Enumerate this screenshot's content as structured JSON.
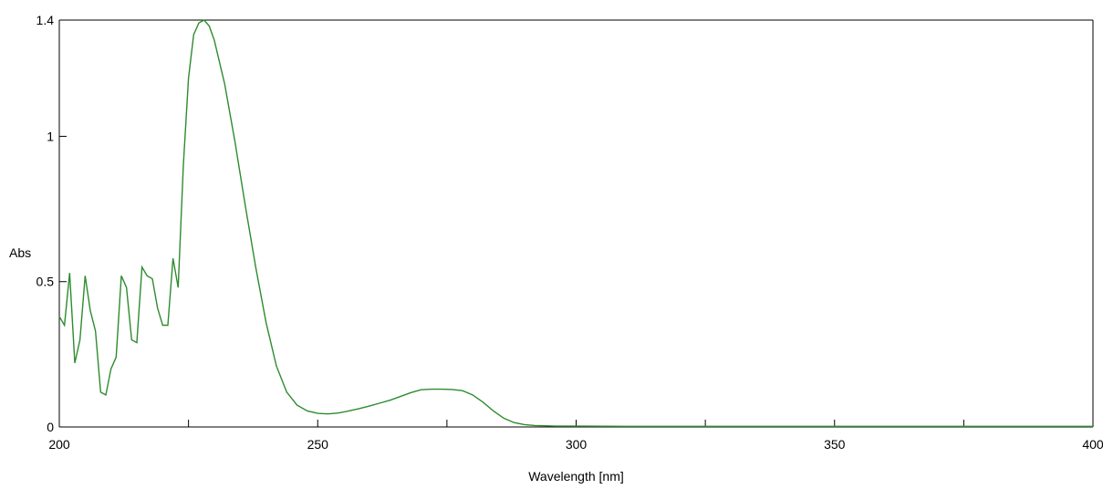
{
  "chart_data": {
    "type": "line",
    "xlabel": "Wavelength [nm]",
    "ylabel": "Abs",
    "xlim": [
      200,
      400
    ],
    "ylim": [
      0,
      1.4
    ],
    "x_ticks": [
      200,
      250,
      300,
      350,
      400
    ],
    "x_minor_ticks": [
      225,
      275,
      325,
      375
    ],
    "y_ticks": [
      0,
      0.5,
      1,
      1.4
    ],
    "x_tick_labels": [
      "200",
      "250",
      "300",
      "350",
      "400"
    ],
    "y_tick_labels": [
      "0",
      "0.5",
      "1",
      "1.4"
    ],
    "grid": false,
    "line_color": "#2e8b2e",
    "series": [
      {
        "x": [
          200,
          201,
          202,
          203,
          204,
          205,
          206,
          207,
          208,
          209,
          210,
          211,
          212,
          213,
          214,
          215,
          216,
          217,
          218,
          219,
          220,
          221,
          222,
          223,
          224,
          225,
          226,
          227,
          228,
          229,
          230,
          232,
          234,
          236,
          238,
          240,
          242,
          244,
          246,
          248,
          250,
          252,
          254,
          256,
          258,
          260,
          262,
          264,
          266,
          268,
          270,
          272,
          274,
          276,
          278,
          280,
          282,
          284,
          286,
          288,
          290,
          292,
          294,
          296,
          300,
          310,
          320,
          330,
          340,
          350,
          360,
          370,
          380,
          390,
          400
        ],
        "y": [
          0.38,
          0.35,
          0.53,
          0.22,
          0.3,
          0.52,
          0.4,
          0.33,
          0.12,
          0.11,
          0.2,
          0.24,
          0.52,
          0.48,
          0.3,
          0.29,
          0.55,
          0.52,
          0.51,
          0.41,
          0.35,
          0.35,
          0.58,
          0.48,
          0.9,
          1.2,
          1.35,
          1.39,
          1.4,
          1.38,
          1.33,
          1.18,
          0.98,
          0.76,
          0.55,
          0.36,
          0.21,
          0.12,
          0.075,
          0.055,
          0.047,
          0.045,
          0.048,
          0.055,
          0.063,
          0.072,
          0.082,
          0.092,
          0.105,
          0.118,
          0.128,
          0.13,
          0.13,
          0.129,
          0.125,
          0.11,
          0.085,
          0.055,
          0.03,
          0.015,
          0.008,
          0.005,
          0.004,
          0.003,
          0.003,
          0.002,
          0.002,
          0.002,
          0.002,
          0.002,
          0.002,
          0.002,
          0.002,
          0.002,
          0.002
        ]
      }
    ]
  }
}
